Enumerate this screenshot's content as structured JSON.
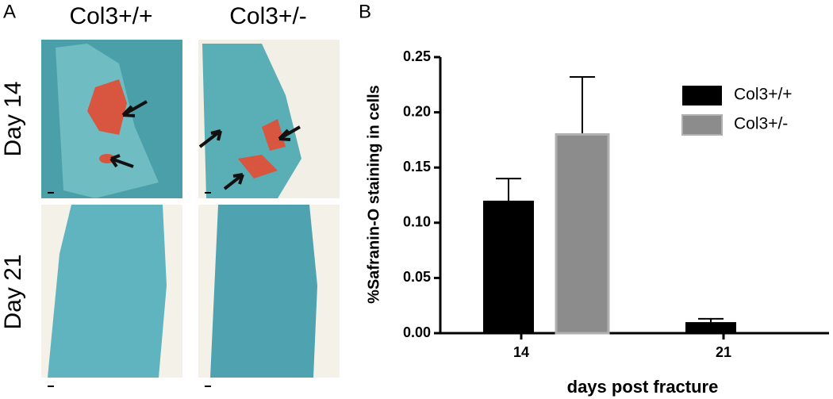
{
  "panel_a": {
    "label": "A",
    "columns": [
      "Col3+/+",
      "Col3+/-"
    ],
    "rows": [
      "Day 14",
      "Day 21"
    ]
  },
  "chart_data": {
    "type": "bar",
    "panel_label": "B",
    "y_label": "%Safranin-O staining in cells",
    "x_label": "days post fracture",
    "categories": [
      "14",
      "21"
    ],
    "series": [
      {
        "name": "Col3+/+",
        "color": "#000000",
        "values": [
          0.12,
          0.01
        ],
        "errors": [
          0.02,
          0.003
        ]
      },
      {
        "name": "Col3+/-",
        "color": "#8c8c8c",
        "values": [
          0.18,
          0
        ],
        "errors": [
          0.052,
          0
        ]
      }
    ],
    "ylim": [
      0,
      0.25
    ],
    "yticks": [
      {
        "value": 0,
        "label": "0.00"
      },
      0.05,
      {
        "value": 0.1,
        "label": "0.10"
      },
      0.15,
      {
        "value": 0.2,
        "label": "0.20"
      },
      0.25
    ],
    "legend": "top-right"
  }
}
